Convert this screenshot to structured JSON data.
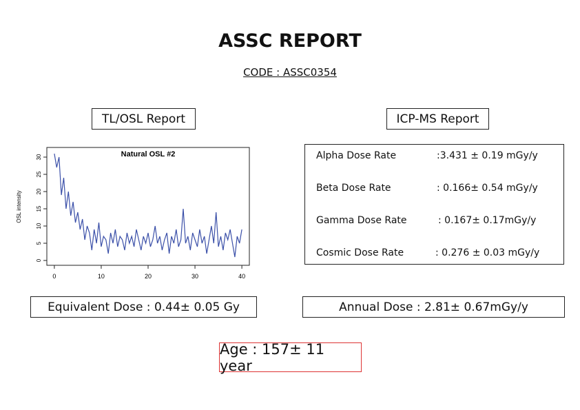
{
  "header": {
    "title": "ASSC REPORT",
    "code": "CODE : ASSC0354"
  },
  "tl_osl": {
    "heading": "TL/OSL Report",
    "result": "Equivalent Dose : 0.44± 0.05 Gy"
  },
  "icp_ms": {
    "heading": "ICP-MS Report",
    "rows": [
      [
        "Alpha Dose Rate",
        ":3.431 ± 0.19 mGy/y"
      ],
      [
        "Beta Dose Rate",
        ": 0.166± 0.54 mGy/y"
      ],
      [
        "Gamma Dose Rate",
        ": 0.167± 0.17mGy/y"
      ],
      [
        "Cosmic Dose Rate",
        ": 0.276 ± 0.03 mGy/y"
      ]
    ],
    "result": "Annual Dose : 2.81± 0.67mGy/y"
  },
  "age": "Age : 157± 11 year",
  "chart_data": {
    "type": "line",
    "title": "Natural OSL #2",
    "ylabel": "OSL intensity",
    "color": "#3a4fa8",
    "x": [
      0,
      0.5,
      1,
      1.5,
      2,
      2.5,
      3,
      3.5,
      4,
      4.5,
      5,
      5.5,
      6,
      6.5,
      7,
      7.5,
      8,
      8.5,
      9,
      9.5,
      10,
      10.5,
      11,
      11.5,
      12,
      12.5,
      13,
      13.5,
      14,
      14.5,
      15,
      15.5,
      16,
      16.5,
      17,
      17.5,
      18,
      18.5,
      19,
      19.5,
      20,
      20.5,
      21,
      21.5,
      22,
      22.5,
      23,
      23.5,
      24,
      24.5,
      25,
      25.5,
      26,
      26.5,
      27,
      27.5,
      28,
      28.5,
      29,
      29.5,
      30,
      30.5,
      31,
      31.5,
      32,
      32.5,
      33,
      33.5,
      34,
      34.5,
      35,
      35.5,
      36,
      36.5,
      37,
      37.5,
      38,
      38.5,
      39,
      39.5,
      40
    ],
    "values": [
      31,
      27,
      30,
      19,
      24,
      15,
      20,
      13,
      17,
      11,
      14,
      9,
      12,
      6,
      10,
      8,
      3,
      9,
      5,
      11,
      4,
      7,
      6,
      2,
      8,
      5,
      9,
      4,
      7,
      6,
      3,
      8,
      5,
      7,
      4,
      9,
      6,
      3,
      7,
      5,
      8,
      4,
      6,
      10,
      5,
      7,
      3,
      6,
      8,
      2,
      7,
      5,
      9,
      4,
      6,
      15,
      5,
      7,
      3,
      8,
      6,
      4,
      9,
      5,
      7,
      2,
      6,
      10,
      5,
      14,
      4,
      7,
      3,
      8,
      6,
      9,
      5,
      1,
      7,
      5,
      9
    ],
    "xlim": [
      -1.6,
      41.6
    ],
    "ylim": [
      -1.4,
      32.8
    ],
    "xticks": [
      0,
      10,
      20,
      30,
      40
    ],
    "yticks": [
      0,
      5,
      10,
      15,
      20,
      25,
      30
    ]
  }
}
